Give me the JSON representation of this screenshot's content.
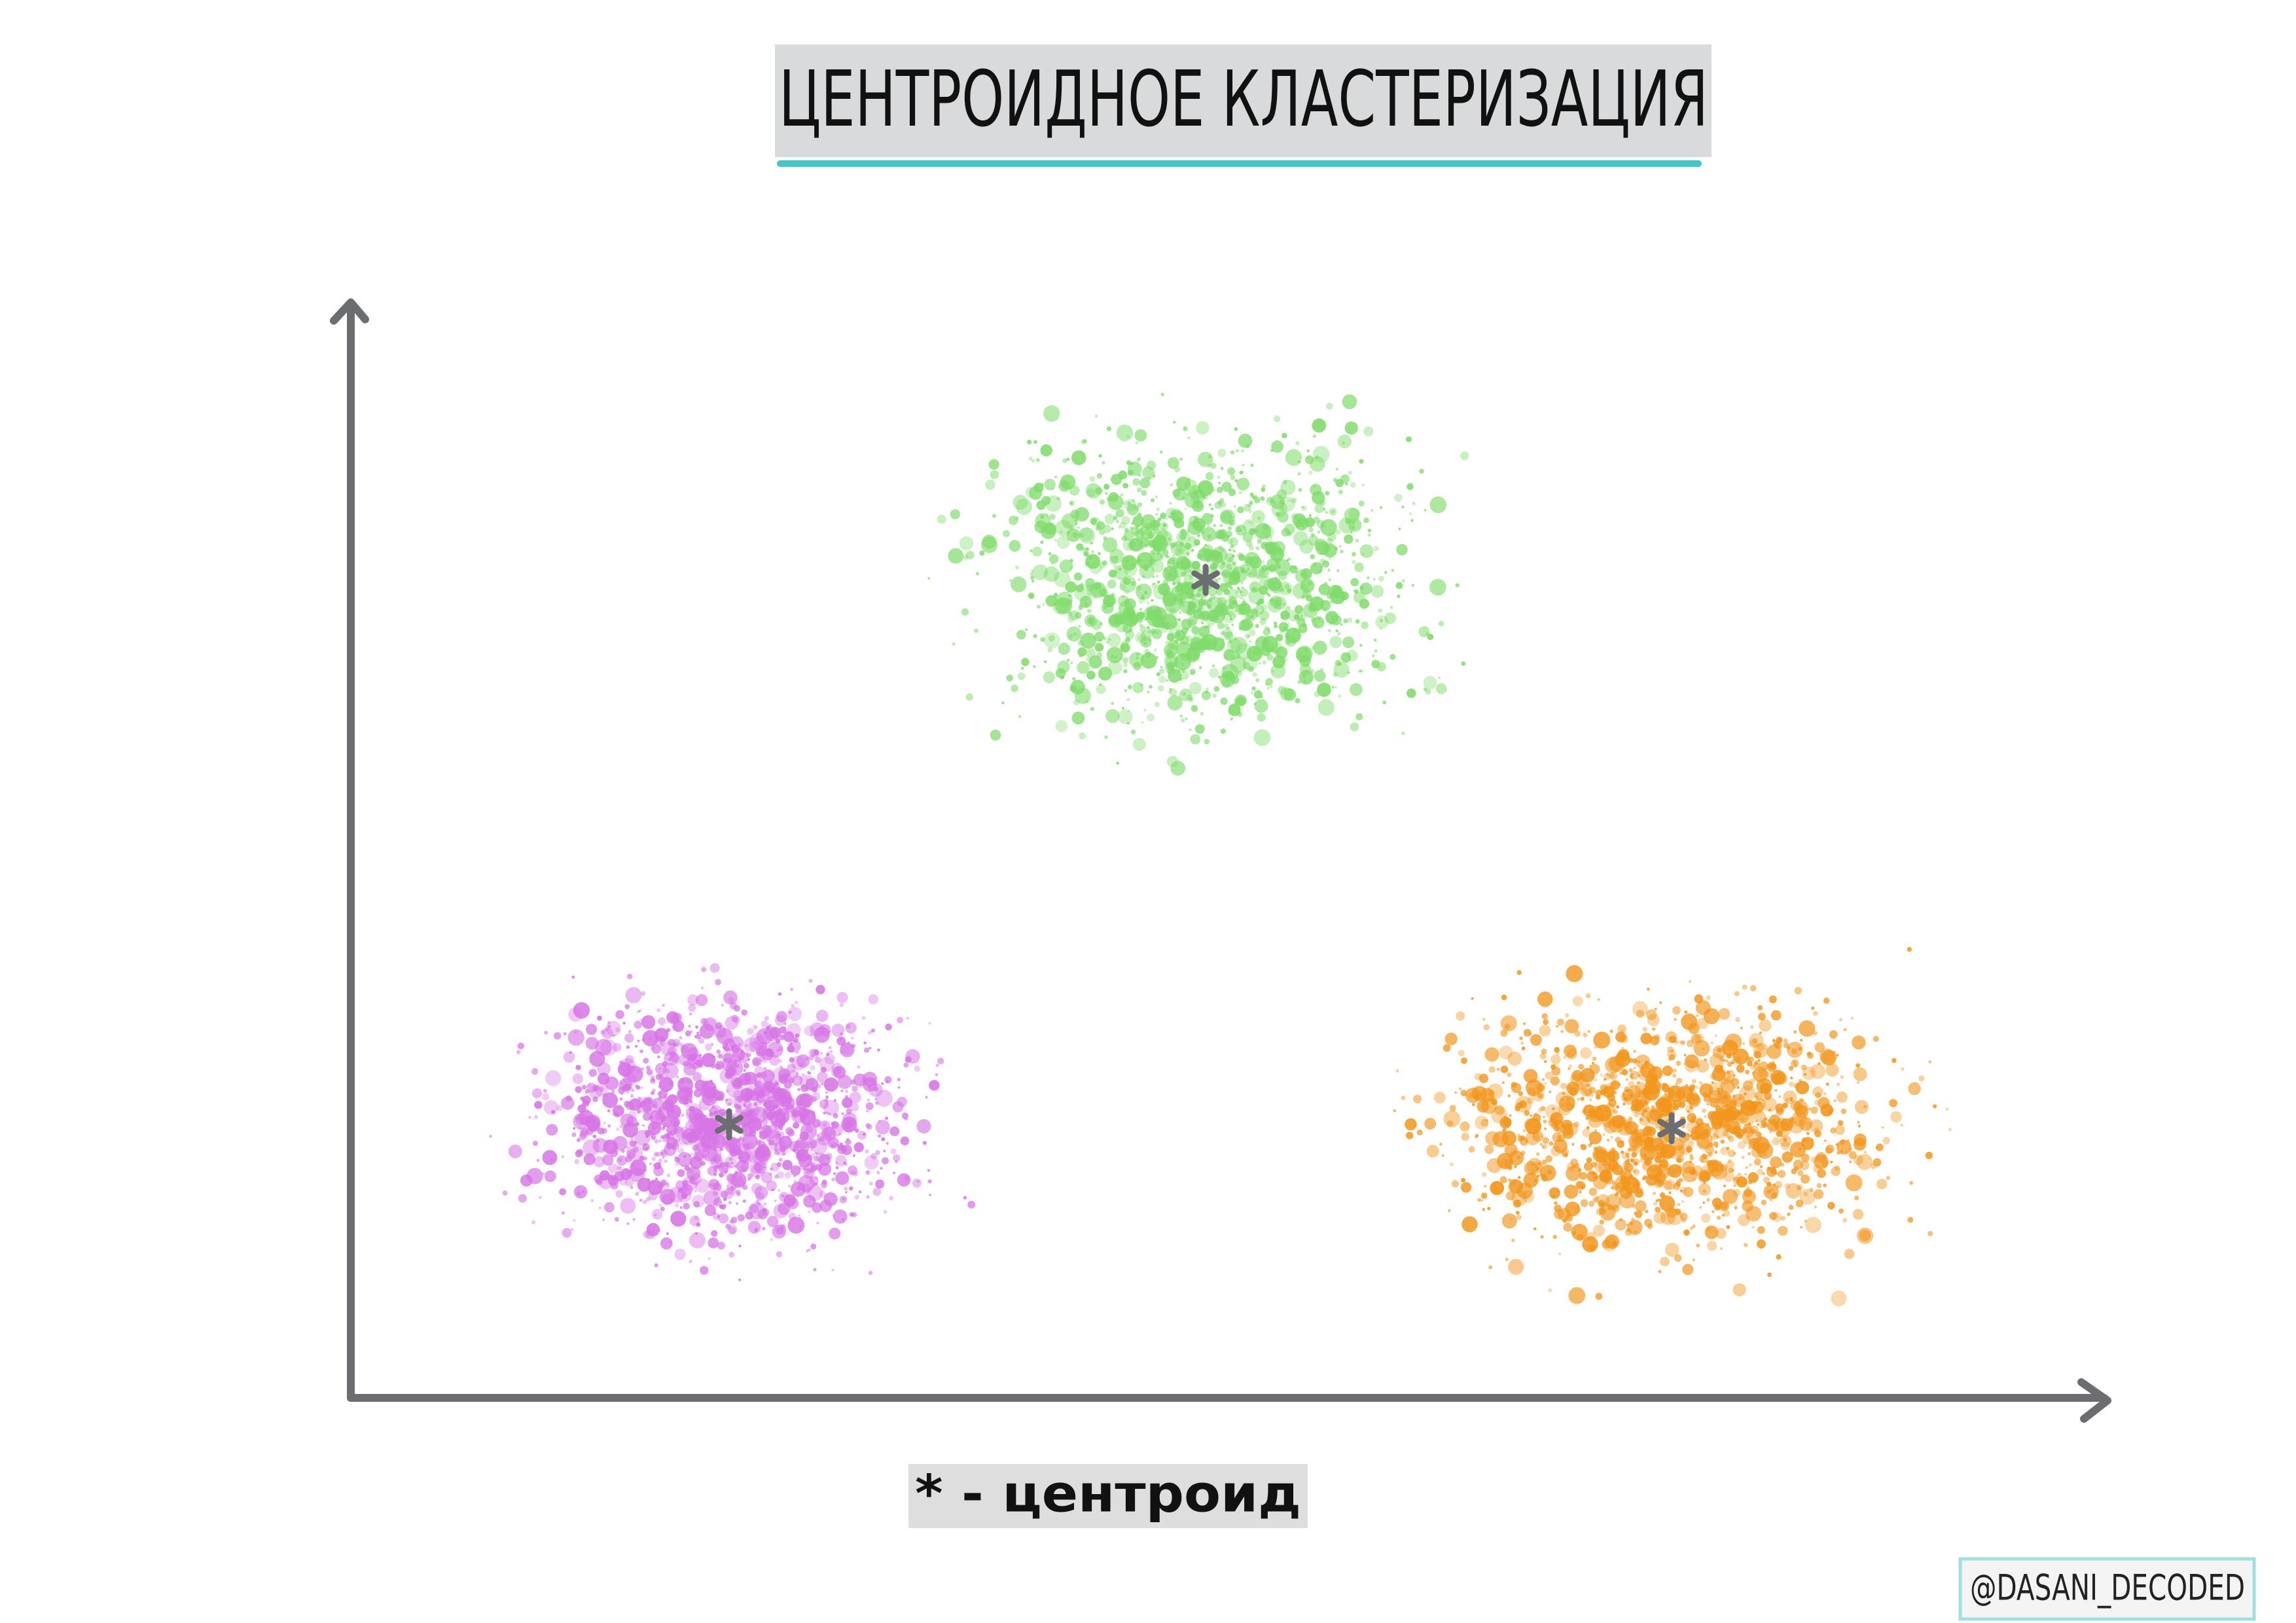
{
  "header": {
    "title": "ЦЕНТРОИДНОЕ КЛАСТЕРИЗАЦИЯ"
  },
  "legend": {
    "text": "* - центроид"
  },
  "credit": {
    "text": "@DASANI_DECODED"
  }
}
